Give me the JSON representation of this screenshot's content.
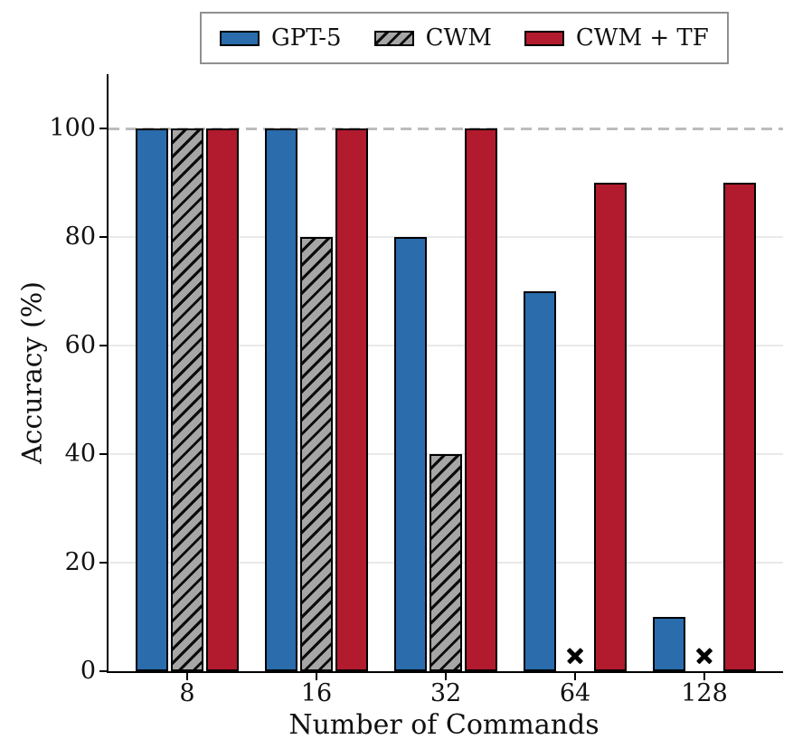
{
  "legend": {
    "border_color": "#909090",
    "items": [
      "GPT-5",
      "CWM",
      "CWM + TF"
    ]
  },
  "chart_data": {
    "type": "bar",
    "title": "",
    "xlabel": "Number of Commands",
    "ylabel": "Accuracy (%)",
    "categories": [
      "8",
      "16",
      "32",
      "64",
      "128"
    ],
    "series": [
      {
        "name": "GPT-5",
        "color": "#2a6cac",
        "hatch": false,
        "values": [
          100,
          100,
          80,
          70,
          10
        ]
      },
      {
        "name": "CWM",
        "color": "#a6a6a6",
        "hatch": true,
        "values": [
          100,
          80,
          40,
          null,
          null
        ]
      },
      {
        "name": "CWM + TF",
        "color": "#b11b2d",
        "hatch": false,
        "values": [
          100,
          100,
          100,
          90,
          90
        ]
      }
    ],
    "missing_value_marker": "x",
    "missing_marker_y": 2.8,
    "yticks": [
      0,
      20,
      40,
      60,
      80,
      100
    ],
    "ylim": [
      0,
      110
    ],
    "grid": true,
    "reference_line": {
      "y": 100,
      "style": "dashed",
      "color": "#bcbcbc"
    },
    "legend_position": "top-center",
    "bar_edge_color": "#000000"
  }
}
